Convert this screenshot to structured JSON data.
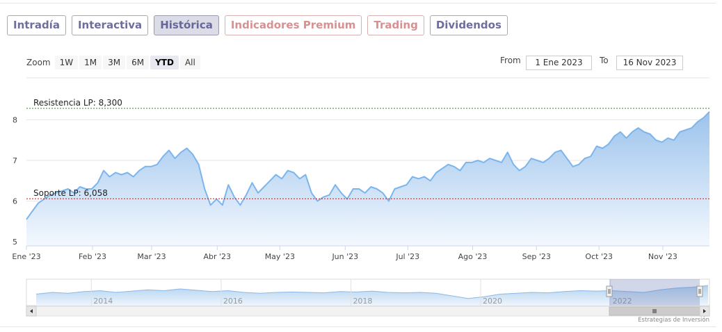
{
  "tabs": [
    {
      "label": "Intradía",
      "active": false,
      "premium": false
    },
    {
      "label": "Interactiva",
      "active": false,
      "premium": false
    },
    {
      "label": "Histórica",
      "active": true,
      "premium": false
    },
    {
      "label": "Indicadores Premium",
      "active": false,
      "premium": true
    },
    {
      "label": "Trading",
      "active": false,
      "premium": true
    },
    {
      "label": "Dividendos",
      "active": false,
      "premium": false
    }
  ],
  "zoom": {
    "label": "Zoom",
    "buttons": [
      "1W",
      "1M",
      "3M",
      "6M",
      "YTD",
      "All"
    ],
    "selected": "YTD"
  },
  "range": {
    "from_label": "From",
    "from_value": "1 Ene 2023",
    "to_label": "To",
    "to_value": "16 Nov 2023"
  },
  "credit": "Estrategias de Inversión",
  "colors": {
    "line": "#7cb5ec",
    "area_top": "#9cc3ec",
    "area_bottom": "#f3f8fe",
    "resistance": "#2e7d32",
    "support": "#b71c1c",
    "tab_text": "#6e6e9c",
    "premium_text": "#d89090"
  },
  "chart_data": {
    "type": "area",
    "ylim": [
      5,
      8.3
    ],
    "yticks": [
      5,
      6,
      7,
      8
    ],
    "xlabels": [
      {
        "label": "Ene '23",
        "t": 0
      },
      {
        "label": "Feb '23",
        "t": 0.0967
      },
      {
        "label": "Mar '23",
        "t": 0.1833
      },
      {
        "label": "Abr '23",
        "t": 0.2793
      },
      {
        "label": "May '23",
        "t": 0.371
      },
      {
        "label": "Jun '23",
        "t": 0.4667
      },
      {
        "label": "Jul '23",
        "t": 0.5583
      },
      {
        "label": "Ago '23",
        "t": 0.6533
      },
      {
        "label": "Sep '23",
        "t": 0.7467
      },
      {
        "label": "Oct '23",
        "t": 0.8383
      },
      {
        "label": "Nov '23",
        "t": 0.9317
      }
    ],
    "series": [
      {
        "values": [
          5.55,
          5.75,
          5.95,
          6.05,
          6.15,
          6.2,
          6.25,
          6.3,
          6.2,
          6.35,
          6.3,
          6.3,
          6.45,
          6.75,
          6.6,
          6.7,
          6.65,
          6.7,
          6.6,
          6.75,
          6.85,
          6.85,
          6.9,
          7.1,
          7.25,
          7.05,
          7.2,
          7.3,
          7.15,
          6.9,
          6.3,
          5.9,
          6.05,
          5.9,
          6.4,
          6.1,
          5.9,
          6.15,
          6.45,
          6.2,
          6.35,
          6.5,
          6.65,
          6.55,
          6.75,
          6.7,
          6.55,
          6.65,
          6.2,
          6.0,
          6.1,
          6.15,
          6.4,
          6.2,
          6.05,
          6.3,
          6.3,
          6.2,
          6.35,
          6.3,
          6.2,
          6.0,
          6.3,
          6.35,
          6.4,
          6.6,
          6.55,
          6.6,
          6.5,
          6.7,
          6.8,
          6.9,
          6.85,
          6.75,
          6.95,
          6.95,
          7.0,
          6.95,
          7.05,
          7.0,
          6.95,
          7.2,
          6.9,
          6.75,
          6.85,
          7.05,
          7.0,
          6.95,
          7.05,
          7.2,
          7.25,
          7.05,
          6.85,
          6.9,
          7.05,
          7.1,
          7.35,
          7.3,
          7.4,
          7.6,
          7.7,
          7.55,
          7.7,
          7.8,
          7.7,
          7.65,
          7.5,
          7.45,
          7.55,
          7.5,
          7.7,
          7.75,
          7.8,
          7.95,
          8.05,
          8.2
        ]
      }
    ],
    "resistance": {
      "label": "Resistencia LP: 8,300",
      "value": 8.3
    },
    "support": {
      "label": "Soporte LP: 6,058",
      "value": 6.058
    },
    "navigator": {
      "labels": [
        {
          "label": "2014",
          "t": 0.095
        },
        {
          "label": "2016",
          "t": 0.285
        },
        {
          "label": "2018",
          "t": 0.475
        },
        {
          "label": "2020",
          "t": 0.665
        },
        {
          "label": "2022",
          "t": 0.855
        }
      ],
      "values": [
        6.8,
        7.0,
        6.9,
        7.1,
        7.2,
        7.0,
        7.15,
        7.3,
        7.2,
        7.4,
        7.25,
        7.1,
        7.2,
        7.0,
        6.9,
        7.0,
        7.05,
        7.0,
        6.95,
        7.1,
        7.05,
        7.15,
        7.0,
        6.95,
        7.0,
        6.9,
        6.6,
        6.3,
        6.5,
        6.8,
        6.9,
        7.0,
        6.95,
        7.1,
        7.2,
        7.15,
        7.2,
        7.1,
        7.0,
        7.3,
        7.5,
        7.6,
        7.8
      ],
      "window_from": 0.945,
      "window_to": 1.0
    }
  }
}
